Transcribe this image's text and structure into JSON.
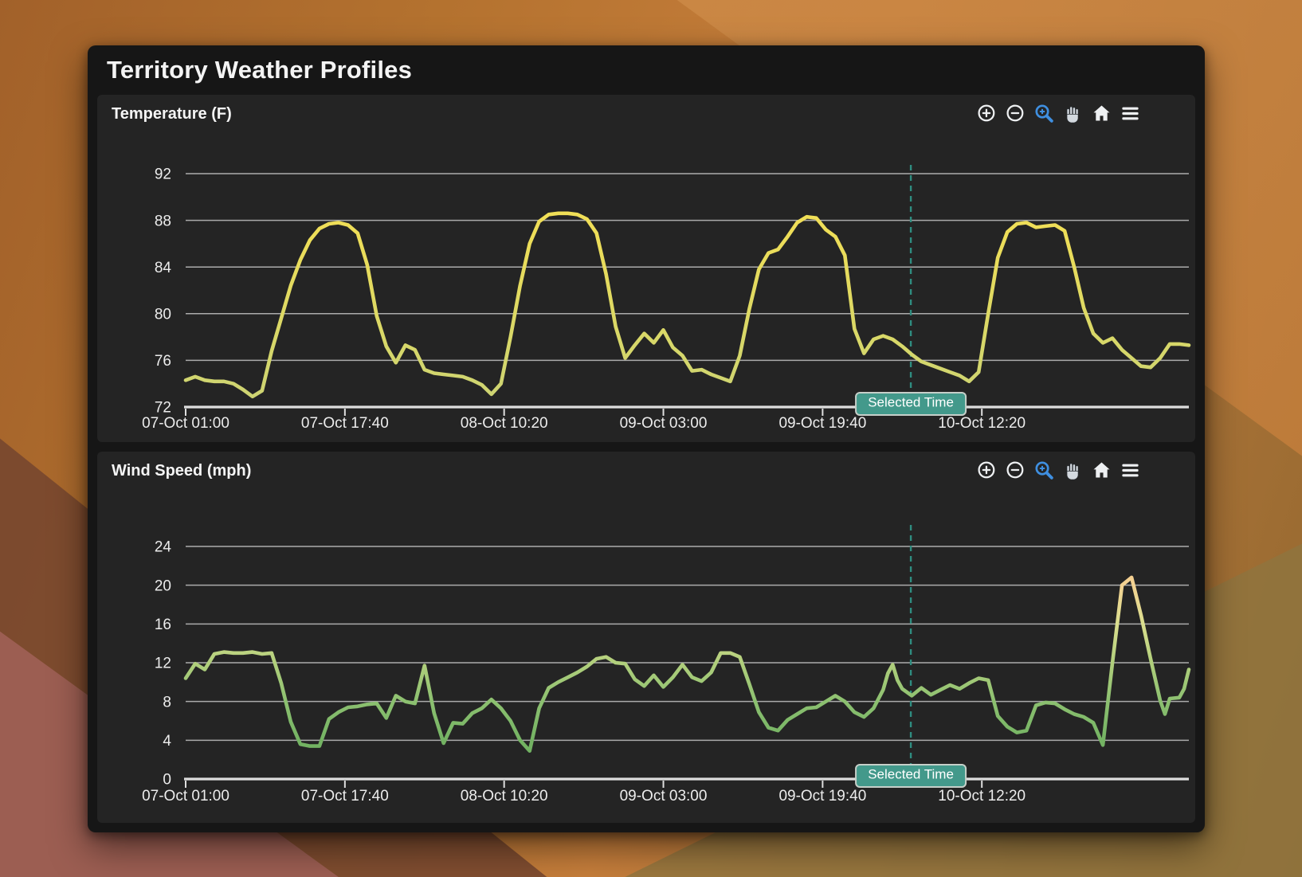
{
  "app": {
    "title": "Territory Weather Profiles"
  },
  "panels": [
    {
      "title": "Temperature (F)"
    },
    {
      "title": "Wind Speed (mph)"
    }
  ],
  "toolbar": {
    "icons": [
      "zoom-in",
      "zoom-out",
      "box-zoom",
      "pan",
      "reset-home",
      "menu"
    ],
    "active_tool": "box-zoom",
    "active_color": "#3f8fe0",
    "idle_color": "#eef0f2"
  },
  "annotation": {
    "label": "Selected Time",
    "badge_fill": "#43998b",
    "badge_border": "#c6cfc9",
    "line_color": "#2f8d80"
  },
  "colors": {
    "card_bg": "#161616",
    "panel_bg": "#242424",
    "grid": "#cdcdcd",
    "axis": "#dedede",
    "tick_text": "#ececec",
    "temp_line_low": "#ccd374",
    "temp_line_high": "#f6e155",
    "wind_line_low": "#69aa5c",
    "wind_line_high": "#f8c98c"
  },
  "chart_data": [
    {
      "type": "line",
      "title": "Temperature (F)",
      "ylabel": "Temperature (F)",
      "ylim": [
        72,
        92
      ],
      "y_ticks": [
        72,
        76,
        80,
        84,
        88,
        92
      ],
      "x_tick_labels": [
        "07-Oct 01:00",
        "07-Oct 17:40",
        "08-Oct 10:20",
        "09-Oct 03:00",
        "09-Oct 19:40",
        "10-Oct 12:20"
      ],
      "x_tick_hours": [
        1,
        17.667,
        34.333,
        51,
        67.667,
        84.333
      ],
      "x_range_hours": [
        1,
        106
      ],
      "selected_time_hour": 76.9,
      "annotation_label": "Selected Time",
      "grid": true,
      "legend": "none",
      "gradient_stops": [
        "#ccd374",
        "#d6d76a",
        "#e2da60",
        "#eede58",
        "#f6e155"
      ],
      "points": [
        [
          1,
          74.3
        ],
        [
          2,
          74.6
        ],
        [
          3,
          74.3
        ],
        [
          4,
          74.2
        ],
        [
          5,
          74.2
        ],
        [
          6,
          74.0
        ],
        [
          7,
          73.5
        ],
        [
          8,
          72.9
        ],
        [
          9,
          73.4
        ],
        [
          10,
          76.8
        ],
        [
          11,
          79.6
        ],
        [
          12,
          82.4
        ],
        [
          13,
          84.6
        ],
        [
          14,
          86.3
        ],
        [
          15,
          87.3
        ],
        [
          16,
          87.7
        ],
        [
          17,
          87.8
        ],
        [
          18,
          87.6
        ],
        [
          19,
          86.9
        ],
        [
          20,
          84.2
        ],
        [
          21,
          79.8
        ],
        [
          22,
          77.2
        ],
        [
          23,
          75.8
        ],
        [
          24,
          77.3
        ],
        [
          25,
          76.9
        ],
        [
          26,
          75.2
        ],
        [
          27,
          74.9
        ],
        [
          28,
          74.8
        ],
        [
          29,
          74.7
        ],
        [
          30,
          74.6
        ],
        [
          31,
          74.3
        ],
        [
          32,
          73.9
        ],
        [
          33,
          73.1
        ],
        [
          34,
          74.0
        ],
        [
          35,
          78.0
        ],
        [
          36,
          82.4
        ],
        [
          37,
          86.0
        ],
        [
          38,
          87.9
        ],
        [
          39,
          88.5
        ],
        [
          40,
          88.6
        ],
        [
          41,
          88.6
        ],
        [
          42,
          88.5
        ],
        [
          43,
          88.1
        ],
        [
          44,
          86.9
        ],
        [
          45,
          83.4
        ],
        [
          46,
          78.9
        ],
        [
          47,
          76.2
        ],
        [
          48,
          77.3
        ],
        [
          49,
          78.3
        ],
        [
          50,
          77.5
        ],
        [
          51,
          78.6
        ],
        [
          52,
          77.1
        ],
        [
          53,
          76.4
        ],
        [
          54,
          75.1
        ],
        [
          55,
          75.2
        ],
        [
          56,
          74.8
        ],
        [
          57,
          74.5
        ],
        [
          58,
          74.2
        ],
        [
          59,
          76.4
        ],
        [
          60,
          80.4
        ],
        [
          61,
          83.8
        ],
        [
          62,
          85.2
        ],
        [
          63,
          85.5
        ],
        [
          64,
          86.6
        ],
        [
          65,
          87.8
        ],
        [
          66,
          88.3
        ],
        [
          67,
          88.2
        ],
        [
          68,
          87.2
        ],
        [
          69,
          86.6
        ],
        [
          70,
          85.0
        ],
        [
          71,
          78.7
        ],
        [
          72,
          76.6
        ],
        [
          73,
          77.8
        ],
        [
          74,
          78.1
        ],
        [
          75,
          77.8
        ],
        [
          76,
          77.2
        ],
        [
          77,
          76.5
        ],
        [
          78,
          75.9
        ],
        [
          79,
          75.6
        ],
        [
          80,
          75.3
        ],
        [
          81,
          75.0
        ],
        [
          82,
          74.7
        ],
        [
          83,
          74.2
        ],
        [
          84,
          75.0
        ],
        [
          85,
          80.0
        ],
        [
          86,
          84.8
        ],
        [
          87,
          87.0
        ],
        [
          88,
          87.7
        ],
        [
          89,
          87.8
        ],
        [
          90,
          87.4
        ],
        [
          91,
          87.5
        ],
        [
          92,
          87.6
        ],
        [
          93,
          87.1
        ],
        [
          94,
          84.0
        ],
        [
          95,
          80.5
        ],
        [
          96,
          78.3
        ],
        [
          97,
          77.5
        ],
        [
          98,
          77.9
        ],
        [
          99,
          76.9
        ],
        [
          100,
          76.2
        ],
        [
          101,
          75.5
        ],
        [
          102,
          75.4
        ],
        [
          103,
          76.2
        ],
        [
          104,
          77.4
        ],
        [
          105,
          77.4
        ],
        [
          106,
          77.3
        ]
      ]
    },
    {
      "type": "line",
      "title": "Wind Speed (mph)",
      "ylabel": "Wind Speed (mph)",
      "ylim": [
        0,
        24
      ],
      "y_ticks": [
        0,
        4,
        8,
        12,
        16,
        20,
        24
      ],
      "x_tick_labels": [
        "07-Oct 01:00",
        "07-Oct 17:40",
        "08-Oct 10:20",
        "09-Oct 03:00",
        "09-Oct 19:40",
        "10-Oct 12:20"
      ],
      "x_tick_hours": [
        1,
        17.667,
        34.333,
        51,
        67.667,
        84.333
      ],
      "x_range_hours": [
        1,
        106
      ],
      "selected_time_hour": 76.9,
      "annotation_label": "Selected Time",
      "grid": true,
      "legend": "none",
      "gradient_stops": [
        "#69aa5c",
        "#74b363",
        "#8cc070",
        "#b1cf7c",
        "#dade8e",
        "#f3d292",
        "#f8c98c"
      ],
      "points": [
        [
          1,
          10.4
        ],
        [
          2,
          11.9
        ],
        [
          3,
          11.3
        ],
        [
          4,
          12.9
        ],
        [
          5,
          13.1
        ],
        [
          6,
          13.0
        ],
        [
          7,
          13.0
        ],
        [
          8,
          13.1
        ],
        [
          9,
          12.9
        ],
        [
          10,
          13.0
        ],
        [
          11,
          9.9
        ],
        [
          12,
          5.9
        ],
        [
          13,
          3.6
        ],
        [
          14,
          3.4
        ],
        [
          15,
          3.4
        ],
        [
          16,
          6.2
        ],
        [
          17,
          6.9
        ],
        [
          18,
          7.4
        ],
        [
          19,
          7.5
        ],
        [
          20,
          7.7
        ],
        [
          21,
          7.8
        ],
        [
          22,
          6.3
        ],
        [
          23,
          8.6
        ],
        [
          24,
          8.0
        ],
        [
          25,
          7.8
        ],
        [
          26,
          11.7
        ],
        [
          27,
          6.8
        ],
        [
          28,
          3.7
        ],
        [
          29,
          5.8
        ],
        [
          30,
          5.7
        ],
        [
          31,
          6.8
        ],
        [
          32,
          7.3
        ],
        [
          33,
          8.2
        ],
        [
          34,
          7.3
        ],
        [
          35,
          6.0
        ],
        [
          36,
          4.0
        ],
        [
          37,
          2.9
        ],
        [
          38,
          7.3
        ],
        [
          39,
          9.4
        ],
        [
          40,
          10.0
        ],
        [
          41,
          10.5
        ],
        [
          42,
          11.0
        ],
        [
          43,
          11.6
        ],
        [
          44,
          12.4
        ],
        [
          45,
          12.6
        ],
        [
          46,
          12.0
        ],
        [
          47,
          11.9
        ],
        [
          48,
          10.3
        ],
        [
          49,
          9.6
        ],
        [
          50,
          10.7
        ],
        [
          51,
          9.5
        ],
        [
          52,
          10.5
        ],
        [
          53,
          11.8
        ],
        [
          54,
          10.5
        ],
        [
          55,
          10.1
        ],
        [
          56,
          11.0
        ],
        [
          57,
          13.0
        ],
        [
          58,
          13.0
        ],
        [
          59,
          12.6
        ],
        [
          60,
          9.8
        ],
        [
          61,
          6.9
        ],
        [
          62,
          5.3
        ],
        [
          63,
          5.0
        ],
        [
          64,
          6.1
        ],
        [
          65,
          6.7
        ],
        [
          66,
          7.3
        ],
        [
          67,
          7.4
        ],
        [
          68,
          8.0
        ],
        [
          69,
          8.6
        ],
        [
          70,
          8.0
        ],
        [
          71,
          6.9
        ],
        [
          72,
          6.4
        ],
        [
          73,
          7.3
        ],
        [
          74,
          9.2
        ],
        [
          74.5,
          10.9
        ],
        [
          75,
          11.8
        ],
        [
          75.5,
          10.2
        ],
        [
          76,
          9.3
        ],
        [
          77,
          8.6
        ],
        [
          78,
          9.4
        ],
        [
          79,
          8.7
        ],
        [
          80,
          9.2
        ],
        [
          81,
          9.7
        ],
        [
          82,
          9.3
        ],
        [
          83,
          9.9
        ],
        [
          84,
          10.4
        ],
        [
          85,
          10.2
        ],
        [
          86,
          6.5
        ],
        [
          87,
          5.4
        ],
        [
          88,
          4.8
        ],
        [
          89,
          5.0
        ],
        [
          90,
          7.6
        ],
        [
          91,
          7.9
        ],
        [
          92,
          7.8
        ],
        [
          93,
          7.2
        ],
        [
          94,
          6.7
        ],
        [
          95,
          6.4
        ],
        [
          96,
          5.8
        ],
        [
          97,
          3.5
        ],
        [
          98,
          12.0
        ],
        [
          99,
          20.0
        ],
        [
          100,
          20.8
        ],
        [
          101,
          16.9
        ],
        [
          102,
          12.4
        ],
        [
          103,
          8.1
        ],
        [
          103.5,
          6.7
        ],
        [
          104,
          8.3
        ],
        [
          105,
          8.4
        ],
        [
          105.5,
          9.3
        ],
        [
          106,
          11.3
        ]
      ]
    }
  ]
}
